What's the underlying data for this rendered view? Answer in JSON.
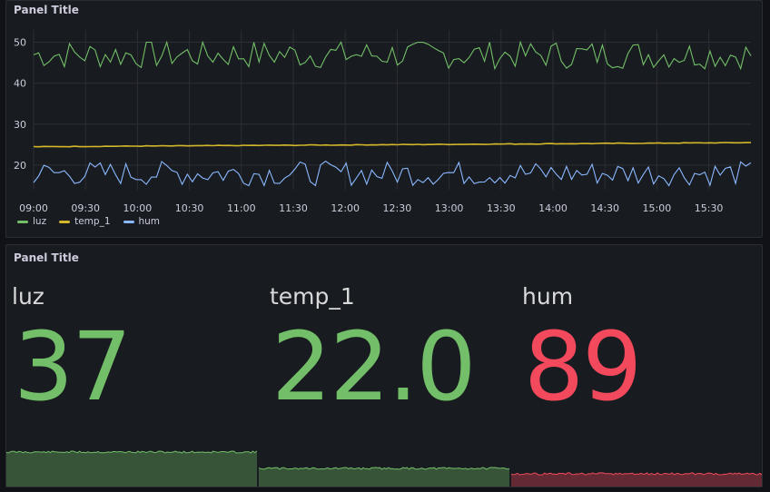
{
  "panels": {
    "timeseries": {
      "title": "Panel Title"
    },
    "stat": {
      "title": "Panel Title"
    }
  },
  "colors": {
    "luz": "#73bf69",
    "temp_1": "#d4b72a",
    "hum": "#8ab8ff",
    "value_green": "#73bf69",
    "value_red": "#f2495c"
  },
  "chart_data": {
    "type": "line",
    "title": "Panel Title",
    "x_ticks": [
      "09:00",
      "09:30",
      "10:00",
      "10:30",
      "11:00",
      "11:30",
      "12:00",
      "12:30",
      "13:00",
      "13:30",
      "14:00",
      "14:30",
      "15:00",
      "15:30"
    ],
    "y_ticks": [
      20,
      30,
      40,
      50
    ],
    "ylim": [
      14,
      53
    ],
    "grid": true,
    "legend_position": "bottom-left",
    "series": [
      {
        "name": "luz",
        "color": "#73bf69",
        "baseline": 47,
        "range": [
          43,
          50
        ]
      },
      {
        "name": "temp_1",
        "color": "#d4b72a",
        "baseline": 25,
        "range": [
          24.5,
          25.5
        ]
      },
      {
        "name": "hum",
        "color": "#8ab8ff",
        "baseline": 18,
        "range": [
          15,
          21
        ]
      }
    ]
  },
  "stats": [
    {
      "name": "luz",
      "value": "37",
      "color": "#73bf69"
    },
    {
      "name": "temp_1",
      "value": "22.0",
      "color": "#73bf69"
    },
    {
      "name": "hum",
      "value": "89",
      "color": "#f2495c"
    }
  ]
}
